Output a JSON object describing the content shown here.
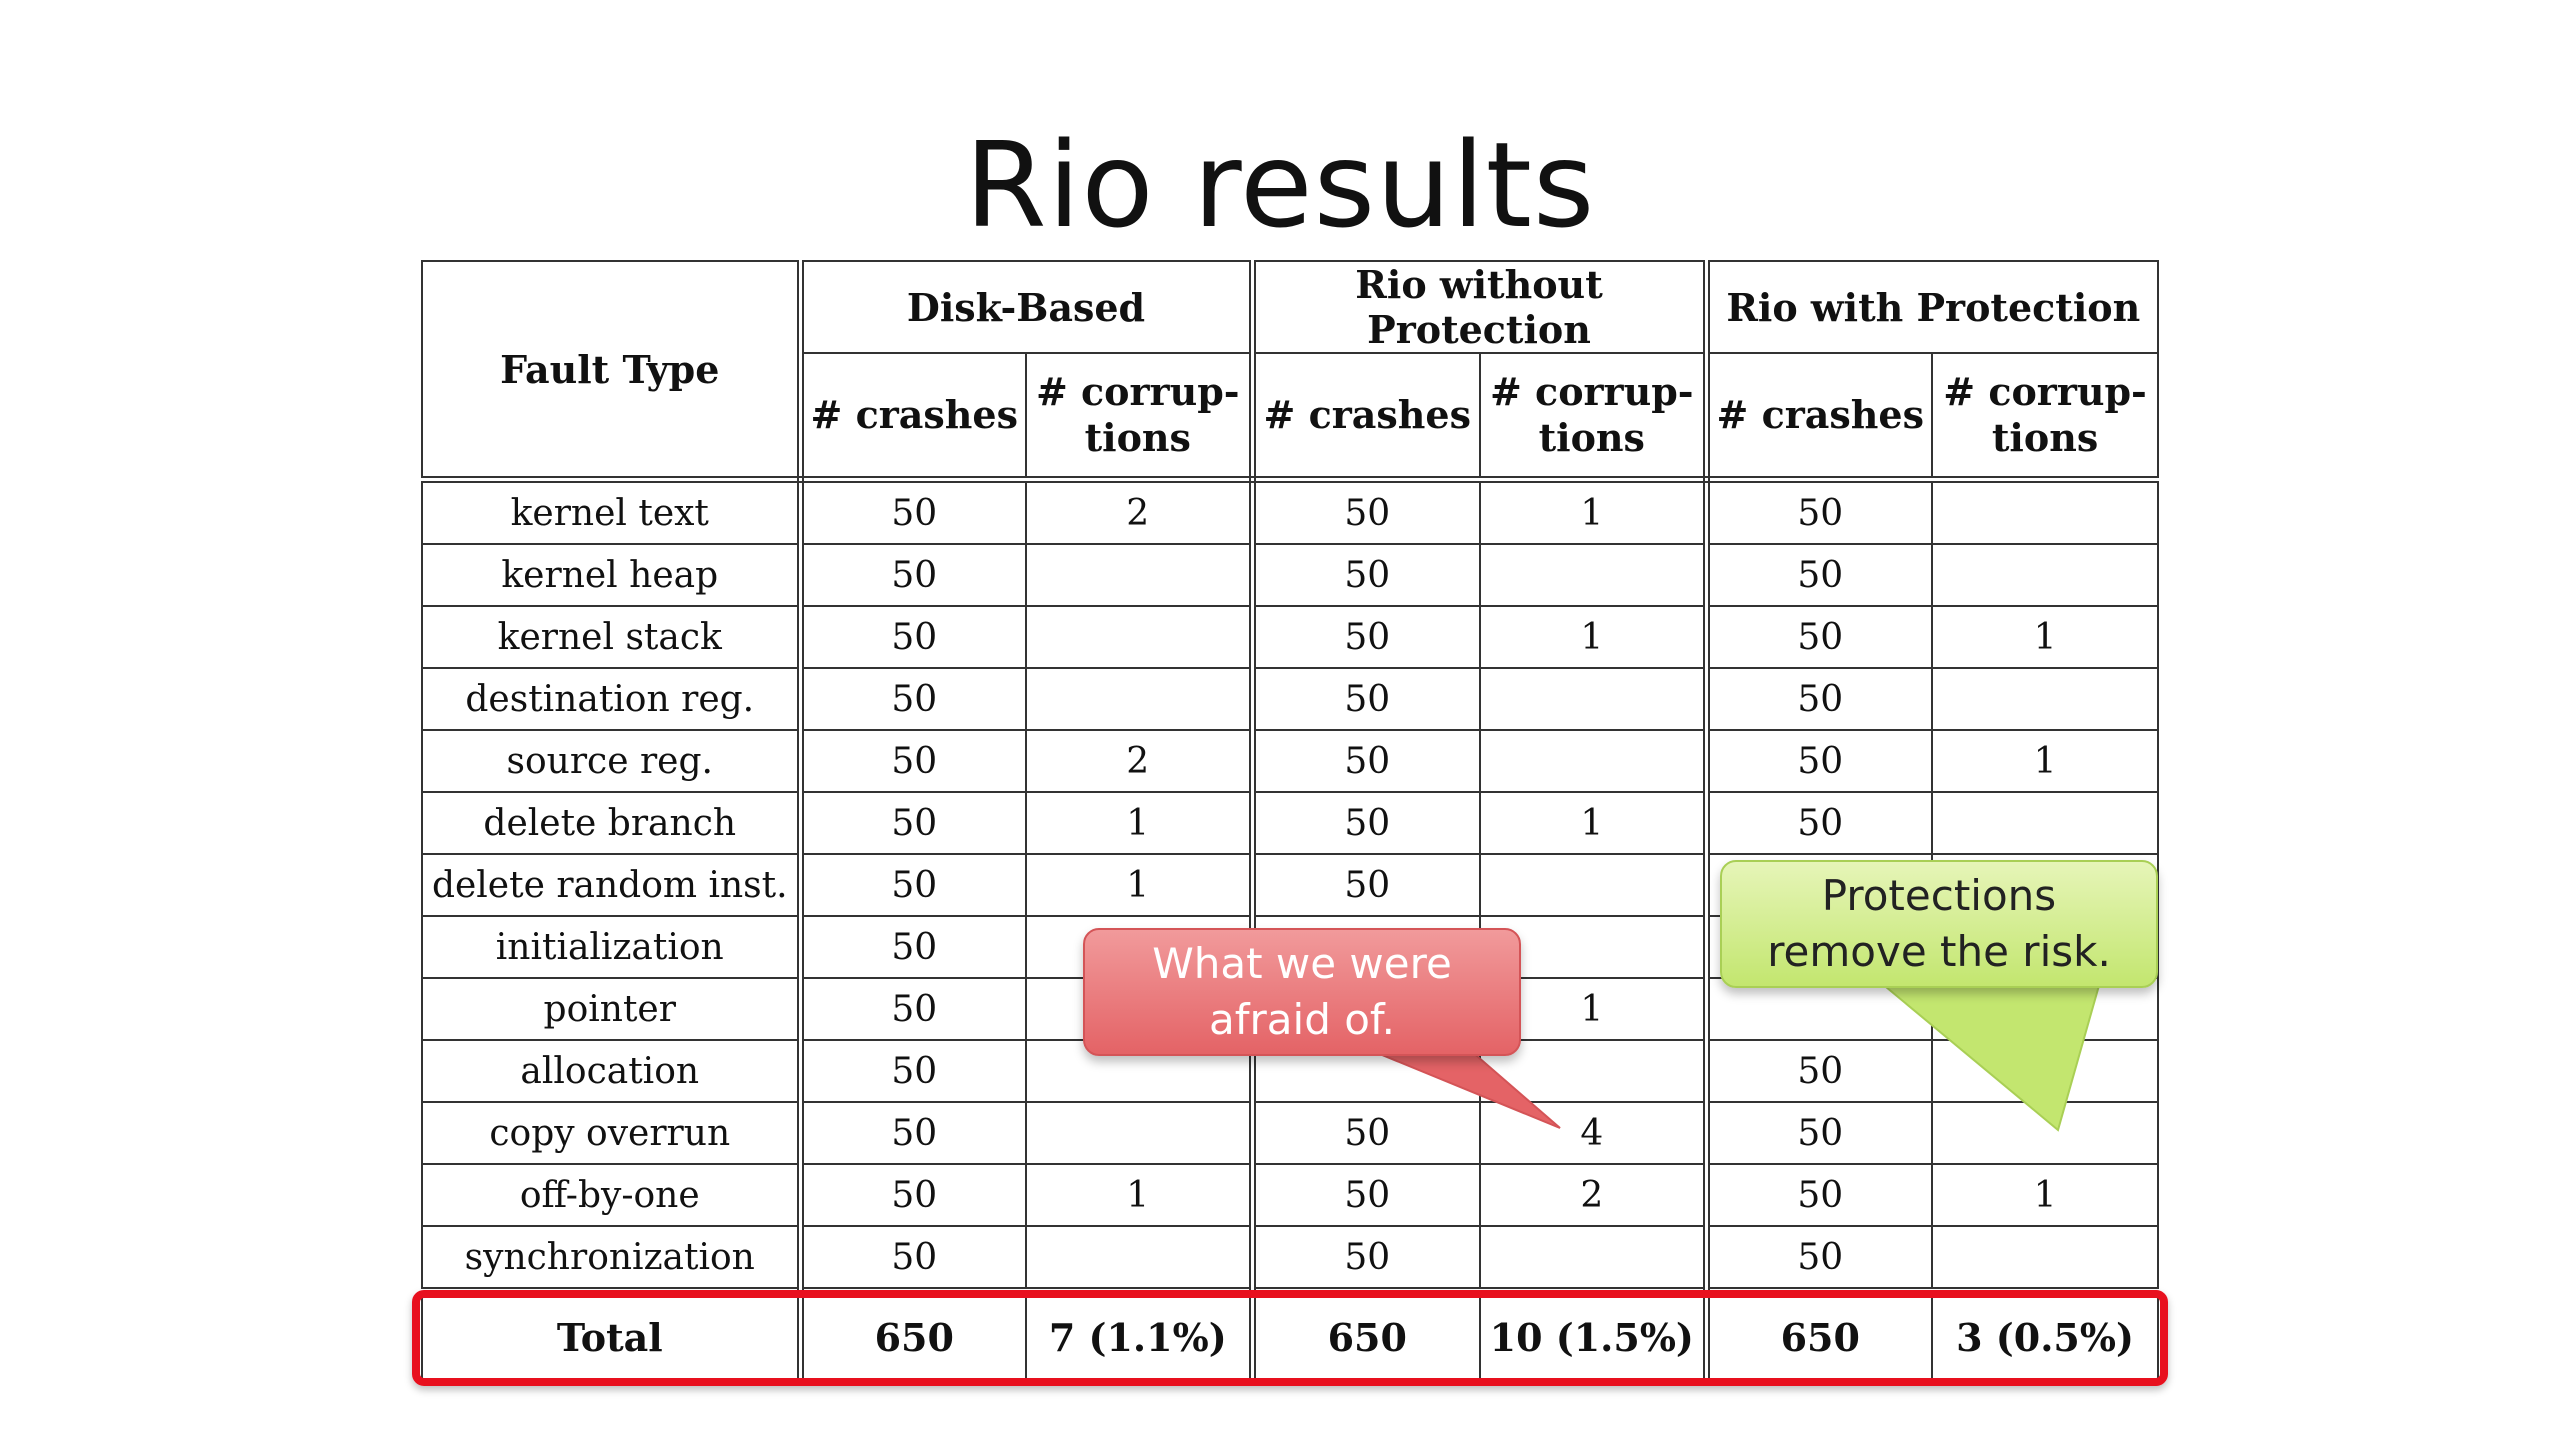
{
  "title": "Rio results",
  "table": {
    "fault_type_header": "Fault Type",
    "groups": [
      "Disk-Based",
      "Rio without Protection",
      "Rio with Protection"
    ],
    "sub_headers": {
      "crashes": "# crashes",
      "corruptions": "# corrup-\ntions"
    },
    "rows": [
      {
        "fault": "kernel text",
        "disk_crashes": "50",
        "disk_corr": "2",
        "rio_np_crashes": "50",
        "rio_np_corr": "1",
        "rio_p_crashes": "50",
        "rio_p_corr": ""
      },
      {
        "fault": "kernel heap",
        "disk_crashes": "50",
        "disk_corr": "",
        "rio_np_crashes": "50",
        "rio_np_corr": "",
        "rio_p_crashes": "50",
        "rio_p_corr": ""
      },
      {
        "fault": "kernel stack",
        "disk_crashes": "50",
        "disk_corr": "",
        "rio_np_crashes": "50",
        "rio_np_corr": "1",
        "rio_p_crashes": "50",
        "rio_p_corr": "1"
      },
      {
        "fault": "destination reg.",
        "disk_crashes": "50",
        "disk_corr": "",
        "rio_np_crashes": "50",
        "rio_np_corr": "",
        "rio_p_crashes": "50",
        "rio_p_corr": ""
      },
      {
        "fault": "source reg.",
        "disk_crashes": "50",
        "disk_corr": "2",
        "rio_np_crashes": "50",
        "rio_np_corr": "",
        "rio_p_crashes": "50",
        "rio_p_corr": "1"
      },
      {
        "fault": "delete branch",
        "disk_crashes": "50",
        "disk_corr": "1",
        "rio_np_crashes": "50",
        "rio_np_corr": "1",
        "rio_p_crashes": "50",
        "rio_p_corr": ""
      },
      {
        "fault": "delete random inst.",
        "disk_crashes": "50",
        "disk_corr": "1",
        "rio_np_crashes": "50",
        "rio_np_corr": "",
        "rio_p_crashes": "",
        "rio_p_corr": ""
      },
      {
        "fault": "initialization",
        "disk_crashes": "50",
        "disk_corr": "",
        "rio_np_crashes": "",
        "rio_np_corr": "",
        "rio_p_crashes": "",
        "rio_p_corr": ""
      },
      {
        "fault": "pointer",
        "disk_crashes": "50",
        "disk_corr": "",
        "rio_np_crashes": "",
        "rio_np_corr": "1",
        "rio_p_crashes": "",
        "rio_p_corr": ""
      },
      {
        "fault": "allocation",
        "disk_crashes": "50",
        "disk_corr": "",
        "rio_np_crashes": "",
        "rio_np_corr": "",
        "rio_p_crashes": "50",
        "rio_p_corr": ""
      },
      {
        "fault": "copy overrun",
        "disk_crashes": "50",
        "disk_corr": "",
        "rio_np_crashes": "50",
        "rio_np_corr": "4",
        "rio_p_crashes": "50",
        "rio_p_corr": ""
      },
      {
        "fault": "off-by-one",
        "disk_crashes": "50",
        "disk_corr": "1",
        "rio_np_crashes": "50",
        "rio_np_corr": "2",
        "rio_p_crashes": "50",
        "rio_p_corr": "1"
      },
      {
        "fault": "synchronization",
        "disk_crashes": "50",
        "disk_corr": "",
        "rio_np_crashes": "50",
        "rio_np_corr": "",
        "rio_p_crashes": "50",
        "rio_p_corr": ""
      }
    ],
    "total": {
      "label": "Total",
      "disk_crashes": "650",
      "disk_corr": "7 (1.1%)",
      "rio_np_crashes": "650",
      "rio_np_corr": "10 (1.5%)",
      "rio_p_crashes": "650",
      "rio_p_corr": "3 (0.5%)"
    }
  },
  "callouts": {
    "red": "What we were\nafraid of.",
    "green": "Protections\nremove the risk."
  },
  "colors": {
    "highlight_border": "#e8101e",
    "red_callout": "#e46366",
    "green_callout": "#c3e66f"
  }
}
